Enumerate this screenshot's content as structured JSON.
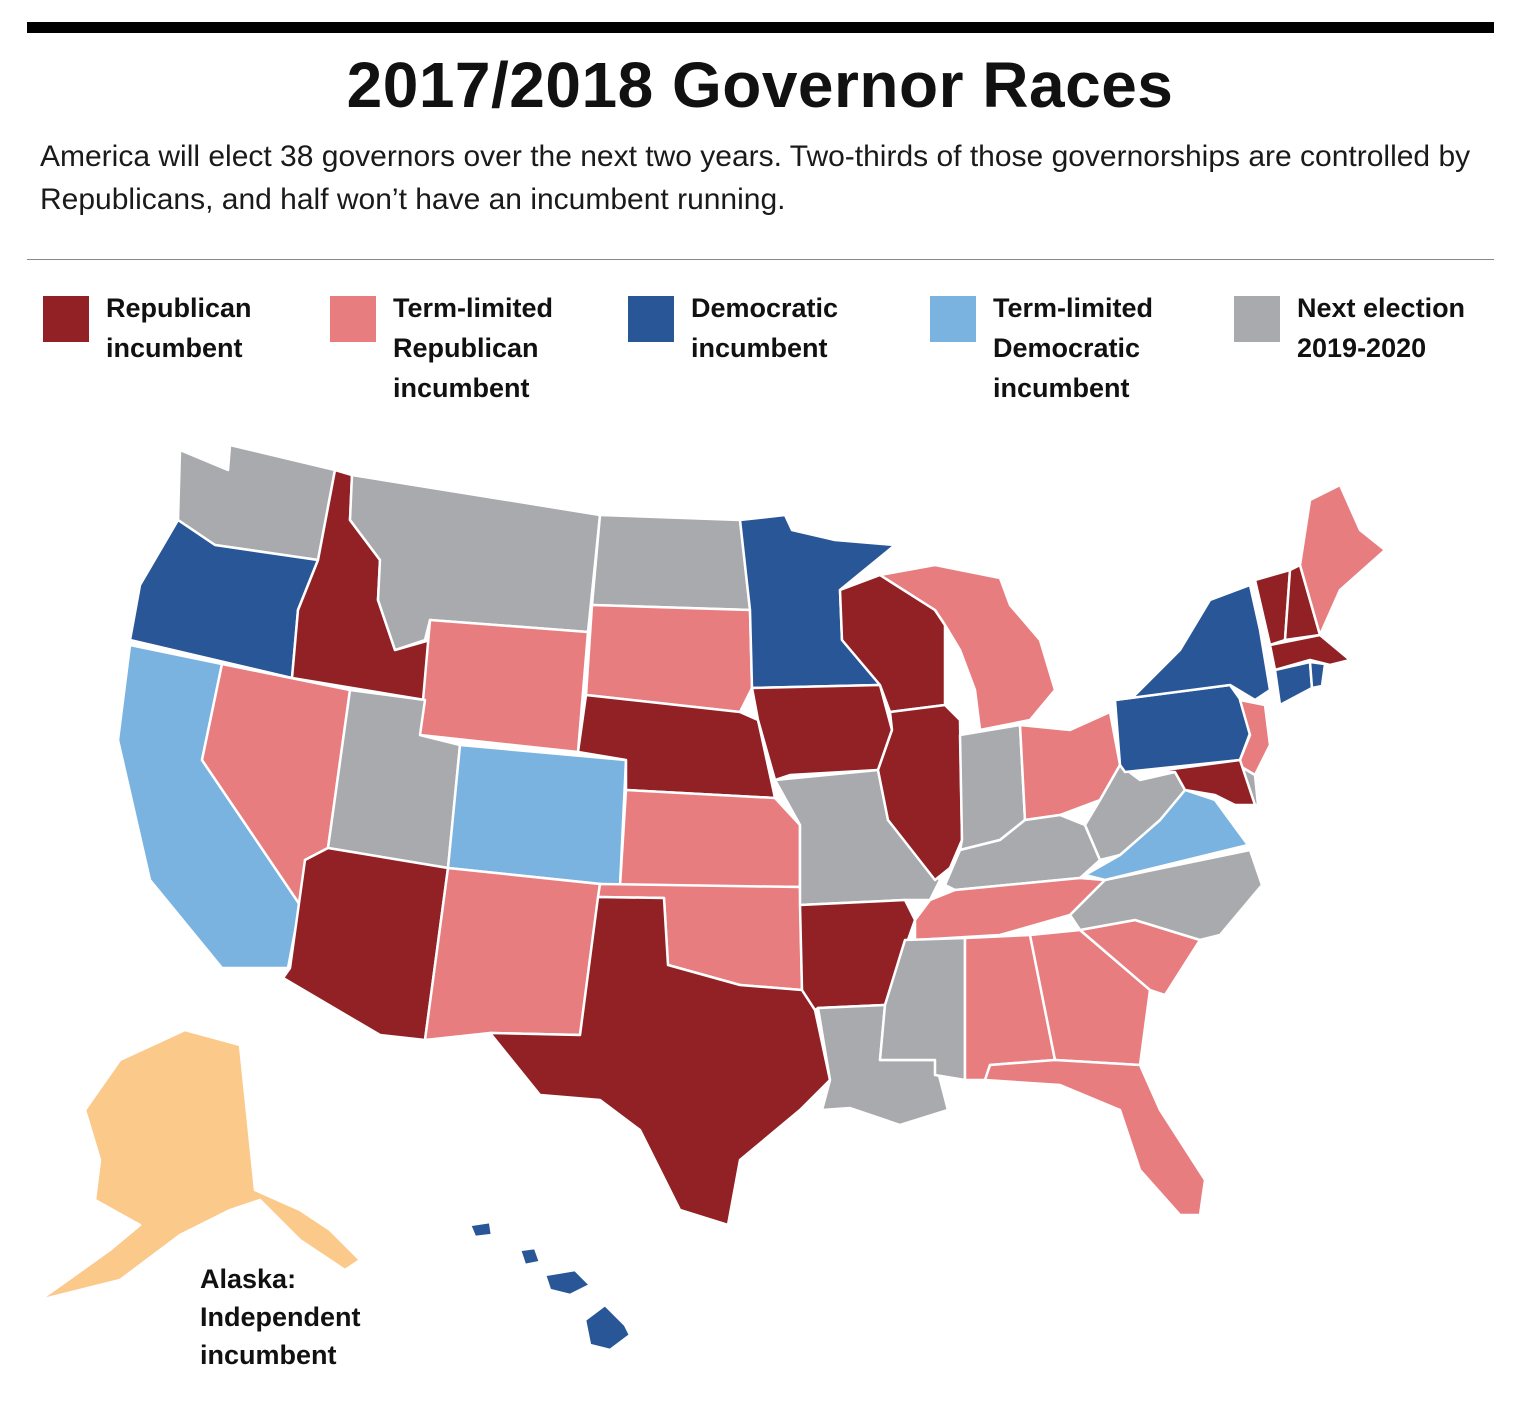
{
  "header": {
    "title": "2017/2018 Governor Races",
    "subtitle": "America will elect 38 governors over the next two years. Two-thirds of those governorships are controlled by Republicans, and half won’t have an incumbent running."
  },
  "legend": [
    {
      "key": "rep",
      "label": "Republican\nincumbent",
      "color": "#922125"
    },
    {
      "key": "trep",
      "label": "Term-limited\nRepublican\nincumbent",
      "color": "#e87d80"
    },
    {
      "key": "dem",
      "label": "Democratic\nincumbent",
      "color": "#285697"
    },
    {
      "key": "tdem",
      "label": "Term-limited\nDemocratic\nincumbent",
      "color": "#7ab3e0"
    },
    {
      "key": "none",
      "label": "Next election\n2019-2020",
      "color": "#a9aaad"
    }
  ],
  "extra_colors": {
    "ind": "#fbc98a"
  },
  "alaska_note": "Alaska:\nIndependent\nincumbent",
  "states": {
    "WA": "none",
    "OR": "dem",
    "CA": "tdem",
    "ID": "rep",
    "NV": "trep",
    "MT": "none",
    "WY": "trep",
    "UT": "none",
    "AZ": "rep",
    "CO": "tdem",
    "NM": "trep",
    "ND": "none",
    "SD": "trep",
    "NE": "rep",
    "KS": "trep",
    "OK": "trep",
    "TX": "rep",
    "MN": "dem",
    "IA": "rep",
    "MO": "none",
    "AR": "rep",
    "LA": "none",
    "WI": "rep",
    "IL": "rep",
    "MS": "none",
    "MI": "trep",
    "IN": "none",
    "KY": "none",
    "TN": "trep",
    "AL": "trep",
    "OH": "trep",
    "GA": "trep",
    "FL": "trep",
    "SC": "trep",
    "NC": "none",
    "VA": "tdem",
    "WV": "none",
    "PA": "dem",
    "NY": "dem",
    "VT": "rep",
    "NH": "rep",
    "ME": "trep",
    "MA": "rep",
    "CT": "dem",
    "RI": "dem",
    "NJ": "trep",
    "DE": "none",
    "MD": "rep",
    "HI": "dem",
    "AK": "ind"
  }
}
